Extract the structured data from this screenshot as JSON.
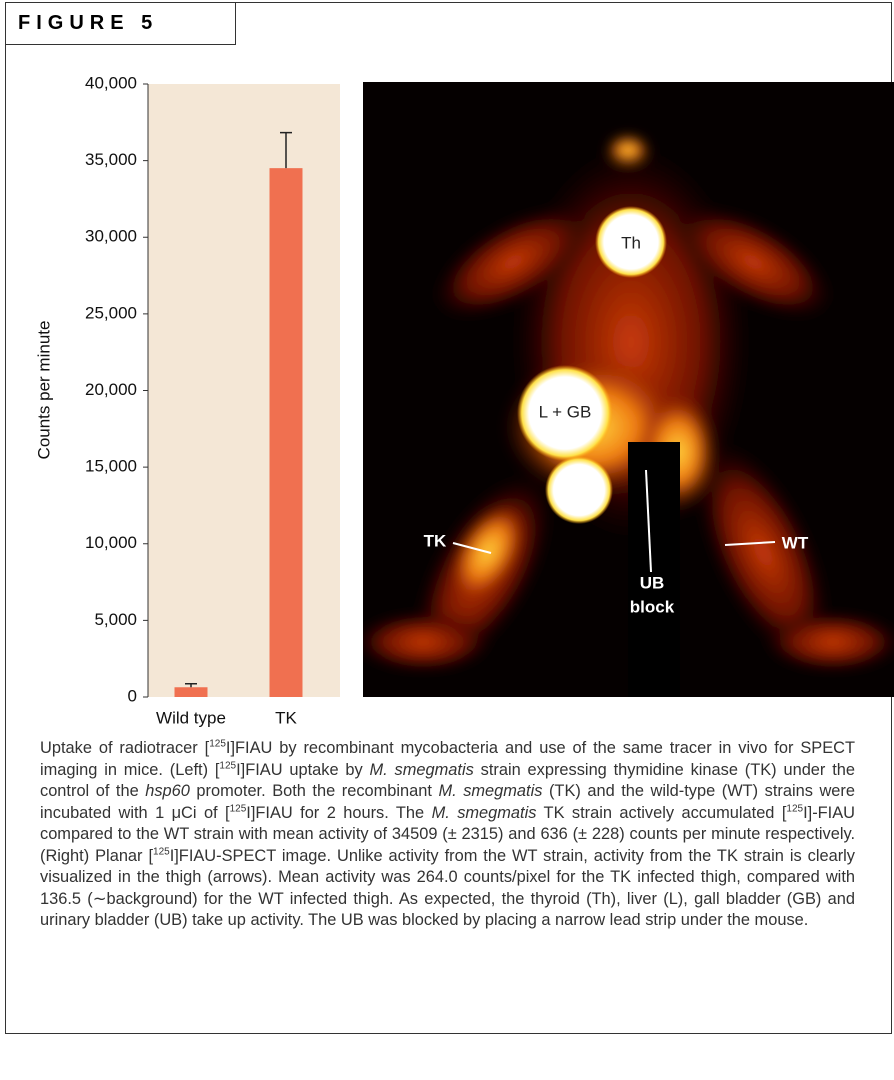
{
  "figure_label": "FIGURE 5",
  "chart_data": {
    "type": "bar",
    "y_label": "Counts per minute",
    "categories": [
      "Wild type",
      "TK"
    ],
    "values": [
      636,
      34509
    ],
    "errors": [
      228,
      2315
    ],
    "color": "#f07050",
    "background": "#f4e7d6",
    "ylim": [
      0,
      40000
    ],
    "yticks": [
      0,
      {
        "value": 5000,
        "label": "5,000"
      },
      {
        "value": 10000,
        "label": "10,000"
      },
      {
        "value": 15000,
        "label": "15,000"
      },
      {
        "value": 20000,
        "label": "20,000"
      },
      {
        "value": 25000,
        "label": "25,000"
      },
      {
        "value": 30000,
        "label": "30,000"
      },
      {
        "value": 35000,
        "label": "35,000"
      },
      {
        "value": 40000,
        "label": "40,000"
      }
    ]
  },
  "image_labels": {
    "th": "Th",
    "l_gb": "L + GB",
    "tk": "TK",
    "wt": "WT",
    "ub": [
      "UB",
      "block"
    ]
  },
  "caption": [
    {
      "t": "Uptake of radiotracer ["
    },
    {
      "t": "125",
      "style": "sup"
    },
    {
      "t": "I]FIAU by recombinant mycobacteria and use of the same tracer in vivo for SPECT imaging in mice. (Left) ["
    },
    {
      "t": "125",
      "style": "sup"
    },
    {
      "t": "I]FIAU uptake by "
    },
    {
      "t": "M. smegmatis",
      "style": "italic"
    },
    {
      "t": " strain expressing thymidine kinase (TK) under the control of the "
    },
    {
      "t": "hsp60",
      "style": "italic"
    },
    {
      "t": " promoter. Both the recombinant "
    },
    {
      "t": "M. smegmatis",
      "style": "italic"
    },
    {
      "t": " (TK) and the wild-type (WT) strains were incubated with 1 μCi of ["
    },
    {
      "t": "125",
      "style": "sup"
    },
    {
      "t": "I]FIAU for 2 hours. The "
    },
    {
      "t": "M. smegmatis",
      "style": "italic"
    },
    {
      "t": " TK strain actively accumulated ["
    },
    {
      "t": "125",
      "style": "sup"
    },
    {
      "t": "I]-FIAU compared to the WT strain with mean activity of 34509 (± 2315) and 636 (± 228) counts per minute respectively. (Right) Planar ["
    },
    {
      "t": "125",
      "style": "sup"
    },
    {
      "t": "I]FIAU-SPECT image. Unlike activity from the WT strain, activity from the TK strain is clearly visualized in the thigh (arrows). Mean activity was 264.0 counts/pixel for the TK infected thigh, compared with 136.5 (∼background) for the WT infected thigh. As expected, the thyroid (Th), liver (L), gall bladder (GB) and urinary bladder (UB) take up activity. The UB was blocked by placing a narrow lead strip under the mouse."
    }
  ]
}
